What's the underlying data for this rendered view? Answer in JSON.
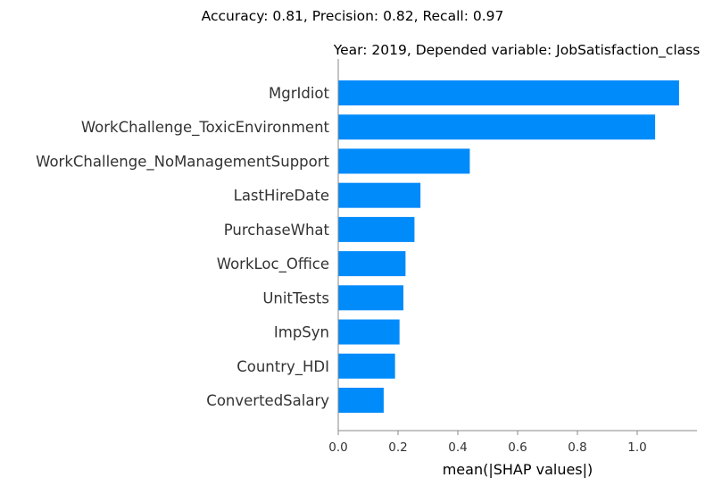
{
  "chart_data": {
    "type": "bar",
    "orientation": "horizontal",
    "suptitle": "Accuracy: 0.81, Precision: 0.82, Recall: 0.97",
    "title": "Year: 2019, Depended variable: JobSatisfaction_class",
    "xlabel": "mean(|SHAP values|)",
    "ylabel": "",
    "categories": [
      "MgrIdiot",
      "WorkChallenge_ToxicEnvironment",
      "WorkChallenge_NoManagementSupport",
      "LastHireDate",
      "PurchaseWhat",
      "WorkLoc_Office",
      "UnitTests",
      "ImpSyn",
      "Country_HDI",
      "ConvertedSalary"
    ],
    "values": [
      1.14,
      1.06,
      0.44,
      0.275,
      0.255,
      0.225,
      0.218,
      0.205,
      0.19,
      0.152
    ],
    "xlim": [
      0,
      1.2
    ],
    "xticks": [
      "0.0",
      "0.2",
      "0.4",
      "0.6",
      "0.8",
      "1.0"
    ],
    "bar_color": "#008bfb",
    "grid": false,
    "legend": "none"
  }
}
